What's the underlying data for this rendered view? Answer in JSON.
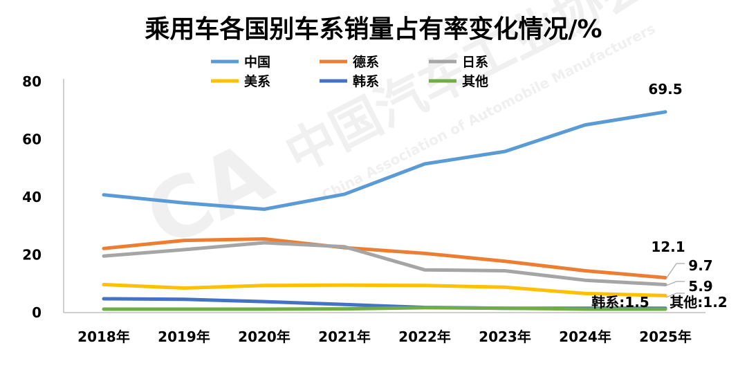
{
  "chart_data": {
    "type": "line",
    "title": "乘用车各国别车系销量占有率变化情况/%",
    "categories": [
      "2018年",
      "2019年",
      "2020年",
      "2021年",
      "2022年",
      "2023年",
      "2024年",
      "2025年"
    ],
    "ylim": [
      0,
      80
    ],
    "yticks": [
      0,
      20,
      40,
      60,
      80
    ],
    "grid": false,
    "legend_position": "top",
    "series": [
      {
        "name": "中国",
        "color": "#5B9BD5",
        "values": [
          40.8,
          38.0,
          35.8,
          41.0,
          51.5,
          55.8,
          65.0,
          69.5
        ]
      },
      {
        "name": "德系",
        "color": "#ED7D31",
        "values": [
          22.2,
          25.0,
          25.5,
          22.5,
          20.5,
          17.8,
          14.5,
          12.1
        ]
      },
      {
        "name": "日系",
        "color": "#A5A5A5",
        "values": [
          19.6,
          21.8,
          24.2,
          22.8,
          14.8,
          14.5,
          11.2,
          9.7
        ]
      },
      {
        "name": "美系",
        "color": "#FFC000",
        "values": [
          9.7,
          8.5,
          9.4,
          9.5,
          9.4,
          8.8,
          6.6,
          5.9
        ]
      },
      {
        "name": "韩系",
        "color": "#4472C4",
        "values": [
          4.8,
          4.6,
          3.8,
          2.8,
          1.8,
          1.5,
          1.5,
          1.5
        ]
      },
      {
        "name": "其他",
        "color": "#70AD47",
        "values": [
          1.2,
          1.2,
          1.2,
          1.3,
          1.7,
          1.5,
          1.2,
          1.2
        ]
      }
    ],
    "data_labels": [
      {
        "text": "69.5"
      },
      {
        "text": "12.1"
      },
      {
        "text": "9.7"
      },
      {
        "text": "5.9"
      },
      {
        "text": "韩系:1.5"
      },
      {
        "text": "其他:1.2"
      }
    ]
  },
  "watermark": {
    "cn": "中国汽车工业协会",
    "en": "China Association of Automobile Manufacturers",
    "logo": "CA"
  }
}
